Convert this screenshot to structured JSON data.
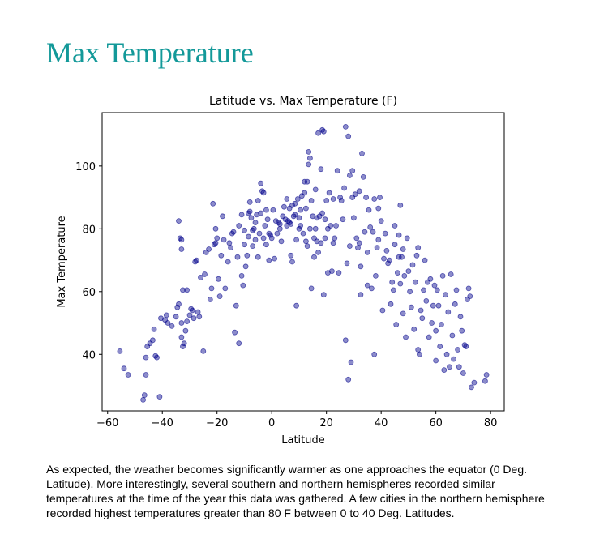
{
  "page": {
    "heading": "Max Temperature",
    "caption": "As expected, the weather becomes significantly warmer as one approaches the equator (0 Deg. Latitude). More interestingly, several southern and northern hemispheres recorded similar temperatures at the time of the year this data was gathered. A few cities in the northern hemisphere recorded highest temperatures greater than 80 F between 0 to 40 Deg. Latitudes."
  },
  "colors": {
    "heading": "#139999",
    "marker_fill": "#00008b",
    "marker_stroke": "#00008b"
  },
  "chart_data": {
    "type": "scatter",
    "title": "Latitude vs. Max Temperature (F)",
    "xlabel": "Latitude",
    "ylabel": "Max Temperature",
    "xlim": [
      -62,
      85
    ],
    "ylim": [
      22,
      117
    ],
    "xticks": [
      -60,
      -40,
      -20,
      0,
      20,
      40,
      60,
      80
    ],
    "yticks": [
      40,
      60,
      80,
      100
    ],
    "grid": false,
    "legend": "none",
    "series": [
      {
        "marker": "circle",
        "alpha": 0.45,
        "points": [
          [
            -55.5,
            41
          ],
          [
            -54,
            35.5
          ],
          [
            -52.5,
            33.5
          ],
          [
            -47,
            25.5
          ],
          [
            -46.5,
            27
          ],
          [
            -46,
            33.5
          ],
          [
            -46,
            39
          ],
          [
            -45.5,
            42.5
          ],
          [
            -44.5,
            43.5
          ],
          [
            -43.5,
            44.5
          ],
          [
            -43,
            48
          ],
          [
            -42.5,
            39.5
          ],
          [
            -42,
            39
          ],
          [
            -41,
            26.5
          ],
          [
            -40.5,
            51.5
          ],
          [
            -39,
            51
          ],
          [
            -38.5,
            52.5
          ],
          [
            -38,
            50
          ],
          [
            -36.5,
            49
          ],
          [
            -35,
            52
          ],
          [
            -34.5,
            55
          ],
          [
            -34,
            56
          ],
          [
            -34,
            82.5
          ],
          [
            -33.5,
            77
          ],
          [
            -33,
            73.5
          ],
          [
            -33,
            76.5
          ],
          [
            -32.5,
            60.5
          ],
          [
            -33,
            45.5
          ],
          [
            -33,
            50
          ],
          [
            -32.5,
            42.5
          ],
          [
            -32,
            43.5
          ],
          [
            -31.5,
            47.5
          ],
          [
            -31,
            50.5
          ],
          [
            -31,
            60.5
          ],
          [
            -30,
            52.5
          ],
          [
            -29.5,
            54.5
          ],
          [
            -29,
            54
          ],
          [
            -28.5,
            51.5
          ],
          [
            -28,
            69.5
          ],
          [
            -27.5,
            70
          ],
          [
            -27,
            53.5
          ],
          [
            -26.5,
            52
          ],
          [
            -26,
            64.5
          ],
          [
            -25,
            41
          ],
          [
            -24.5,
            65.5
          ],
          [
            -24,
            72.5
          ],
          [
            -23,
            73.5
          ],
          [
            -22.5,
            57.5
          ],
          [
            -22,
            61
          ],
          [
            -21.5,
            88
          ],
          [
            -21,
            75
          ],
          [
            -20.5,
            75.5
          ],
          [
            -20.5,
            80
          ],
          [
            -20,
            77
          ],
          [
            -19.5,
            64
          ],
          [
            -19,
            58.5
          ],
          [
            -18.5,
            71.5
          ],
          [
            -18,
            84
          ],
          [
            -17.5,
            76.5
          ],
          [
            -17,
            61
          ],
          [
            -16,
            69.5
          ],
          [
            -15.5,
            75.5
          ],
          [
            -15,
            74
          ],
          [
            -14.5,
            78.5
          ],
          [
            -14,
            79
          ],
          [
            -13.5,
            47
          ],
          [
            -13,
            55.5
          ],
          [
            -12.5,
            71
          ],
          [
            -12,
            43.5
          ],
          [
            -12,
            81
          ],
          [
            -11,
            65
          ],
          [
            -11,
            84.5
          ],
          [
            -10.5,
            62
          ],
          [
            -10,
            75
          ],
          [
            -10,
            79.5
          ],
          [
            -9.5,
            68
          ],
          [
            -9,
            71.5
          ],
          [
            -8.5,
            77.5
          ],
          [
            -8.5,
            85
          ],
          [
            -8,
            85.5
          ],
          [
            -8,
            88.5
          ],
          [
            -7.5,
            83.5
          ],
          [
            -7,
            74.5
          ],
          [
            -7,
            79.5
          ],
          [
            -6.5,
            80
          ],
          [
            -6,
            76.5
          ],
          [
            -6,
            82
          ],
          [
            -5.5,
            84.5
          ],
          [
            -5,
            89
          ],
          [
            -5,
            71
          ],
          [
            -4.5,
            78.5
          ],
          [
            -4,
            94.5
          ],
          [
            -4,
            85
          ],
          [
            -3.5,
            92
          ],
          [
            -3,
            91.5
          ],
          [
            -3,
            77
          ],
          [
            -2.5,
            81
          ],
          [
            -2,
            86
          ],
          [
            -2,
            75
          ],
          [
            -1.5,
            83
          ],
          [
            -1,
            78.5
          ],
          [
            -1,
            70
          ],
          [
            -0.5,
            78
          ],
          [
            0,
            77
          ],
          [
            0.5,
            86
          ],
          [
            1,
            70.5
          ],
          [
            1.5,
            82.5
          ],
          [
            2,
            78.5
          ],
          [
            2.5,
            82
          ],
          [
            3,
            81.5
          ],
          [
            3,
            80
          ],
          [
            3.5,
            76
          ],
          [
            4,
            84
          ],
          [
            4.5,
            87
          ],
          [
            5,
            83
          ],
          [
            5.5,
            89.5
          ],
          [
            5.5,
            81
          ],
          [
            6,
            82.5
          ],
          [
            6.5,
            86.5
          ],
          [
            6.5,
            82
          ],
          [
            7,
            81.5
          ],
          [
            7,
            71.5
          ],
          [
            7.5,
            87.5
          ],
          [
            7.5,
            69.5
          ],
          [
            8,
            84
          ],
          [
            8.5,
            88
          ],
          [
            8.5,
            84.5
          ],
          [
            9,
            55.5
          ],
          [
            9,
            76.5
          ],
          [
            9.5,
            89.5
          ],
          [
            10,
            83.5
          ],
          [
            10,
            80
          ],
          [
            10.5,
            86
          ],
          [
            10.5,
            81
          ],
          [
            11,
            90.5
          ],
          [
            11.5,
            78.5
          ],
          [
            12,
            95
          ],
          [
            12,
            91.5
          ],
          [
            12.5,
            86.5
          ],
          [
            12.5,
            76
          ],
          [
            13,
            95
          ],
          [
            13,
            74.5
          ],
          [
            13.5,
            100.5
          ],
          [
            13.5,
            104.5
          ],
          [
            14,
            102.5
          ],
          [
            14,
            80
          ],
          [
            14.5,
            61
          ],
          [
            14.5,
            89
          ],
          [
            15,
            84
          ],
          [
            15.5,
            77
          ],
          [
            15.5,
            71
          ],
          [
            16,
            80
          ],
          [
            16,
            92.5
          ],
          [
            16.5,
            83.5
          ],
          [
            16.5,
            76
          ],
          [
            17,
            72.5
          ],
          [
            17,
            110.5
          ],
          [
            17.5,
            84
          ],
          [
            18,
            99
          ],
          [
            18,
            75.5
          ],
          [
            18.5,
            85
          ],
          [
            18.5,
            111.5
          ],
          [
            19,
            111
          ],
          [
            19,
            59
          ],
          [
            19.5,
            77
          ],
          [
            19.5,
            83
          ],
          [
            20,
            89
          ],
          [
            20.5,
            66
          ],
          [
            20.5,
            80
          ],
          [
            21,
            91.5
          ],
          [
            21.5,
            81
          ],
          [
            22,
            66.5
          ],
          [
            22.5,
            75.5
          ],
          [
            22.5,
            89.5
          ],
          [
            23,
            77
          ],
          [
            23.5,
            81
          ],
          [
            24,
            98.5
          ],
          [
            24.5,
            66
          ],
          [
            25,
            90
          ],
          [
            25.5,
            89
          ],
          [
            26,
            83
          ],
          [
            26.5,
            93
          ],
          [
            27,
            112.5
          ],
          [
            27,
            44.5
          ],
          [
            27.5,
            69
          ],
          [
            28,
            32
          ],
          [
            28,
            109.5
          ],
          [
            28.5,
            74.5
          ],
          [
            28.5,
            97
          ],
          [
            29,
            37.5
          ],
          [
            29.5,
            98.5
          ],
          [
            29.5,
            90
          ],
          [
            30,
            83.5
          ],
          [
            30.5,
            91
          ],
          [
            31,
            77
          ],
          [
            31.5,
            74
          ],
          [
            32,
            75.5
          ],
          [
            32,
            92
          ],
          [
            32.5,
            68
          ],
          [
            32.5,
            59
          ],
          [
            33,
            104
          ],
          [
            33.5,
            96.5
          ],
          [
            34,
            79
          ],
          [
            34.5,
            90
          ],
          [
            35,
            72.5
          ],
          [
            35,
            62
          ],
          [
            35.5,
            86
          ],
          [
            36,
            80.5
          ],
          [
            36.5,
            61
          ],
          [
            37,
            79
          ],
          [
            37.5,
            89.5
          ],
          [
            37.5,
            40
          ],
          [
            38,
            65
          ],
          [
            38.5,
            74
          ],
          [
            39,
            76.5
          ],
          [
            39,
            86.5
          ],
          [
            39.5,
            90
          ],
          [
            40,
            82.5
          ],
          [
            40.5,
            54
          ],
          [
            41,
            70.5
          ],
          [
            41.5,
            78.5
          ],
          [
            42,
            73
          ],
          [
            42.5,
            69
          ],
          [
            43,
            70
          ],
          [
            43.5,
            56
          ],
          [
            44,
            63
          ],
          [
            44.5,
            60.5
          ],
          [
            45,
            75
          ],
          [
            45,
            81
          ],
          [
            45.5,
            49.5
          ],
          [
            46,
            66
          ],
          [
            46.5,
            71
          ],
          [
            46.5,
            78
          ],
          [
            47,
            62.5
          ],
          [
            47,
            87.5
          ],
          [
            47.5,
            71
          ],
          [
            48,
            73.5
          ],
          [
            48,
            53
          ],
          [
            48.5,
            65
          ],
          [
            49,
            45.5
          ],
          [
            49.5,
            77
          ],
          [
            50,
            66.5
          ],
          [
            50.5,
            60
          ],
          [
            51,
            55
          ],
          [
            51.5,
            68.5
          ],
          [
            52,
            48
          ],
          [
            52.5,
            63
          ],
          [
            53,
            71.5
          ],
          [
            53.5,
            74
          ],
          [
            53.5,
            41.5
          ],
          [
            54,
            40
          ],
          [
            54.5,
            54
          ],
          [
            55,
            51.5
          ],
          [
            55.5,
            60.5
          ],
          [
            56,
            70
          ],
          [
            56.5,
            57
          ],
          [
            57,
            63
          ],
          [
            57.5,
            45.5
          ],
          [
            58,
            64
          ],
          [
            58.5,
            50
          ],
          [
            59,
            55.5
          ],
          [
            59.5,
            62
          ],
          [
            60,
            38
          ],
          [
            60,
            47.5
          ],
          [
            60.5,
            60.5
          ],
          [
            61,
            55.5
          ],
          [
            61.5,
            42.5
          ],
          [
            62,
            49.5
          ],
          [
            62.5,
            65
          ],
          [
            63,
            35
          ],
          [
            63.5,
            59
          ],
          [
            64,
            40
          ],
          [
            64.5,
            53.5
          ],
          [
            65,
            36
          ],
          [
            65.5,
            65.5
          ],
          [
            66,
            46
          ],
          [
            66.5,
            38.5
          ],
          [
            67,
            56
          ],
          [
            67.5,
            60.5
          ],
          [
            68,
            41.5
          ],
          [
            68.5,
            36
          ],
          [
            69,
            52
          ],
          [
            69.5,
            47.5
          ],
          [
            70,
            34
          ],
          [
            70.5,
            43
          ],
          [
            71,
            42.5
          ],
          [
            71.5,
            57.5
          ],
          [
            72,
            61
          ],
          [
            72.5,
            58.5
          ],
          [
            73,
            29.5
          ],
          [
            74,
            31
          ],
          [
            78,
            31.5
          ],
          [
            78.5,
            33.5
          ]
        ]
      }
    ]
  }
}
